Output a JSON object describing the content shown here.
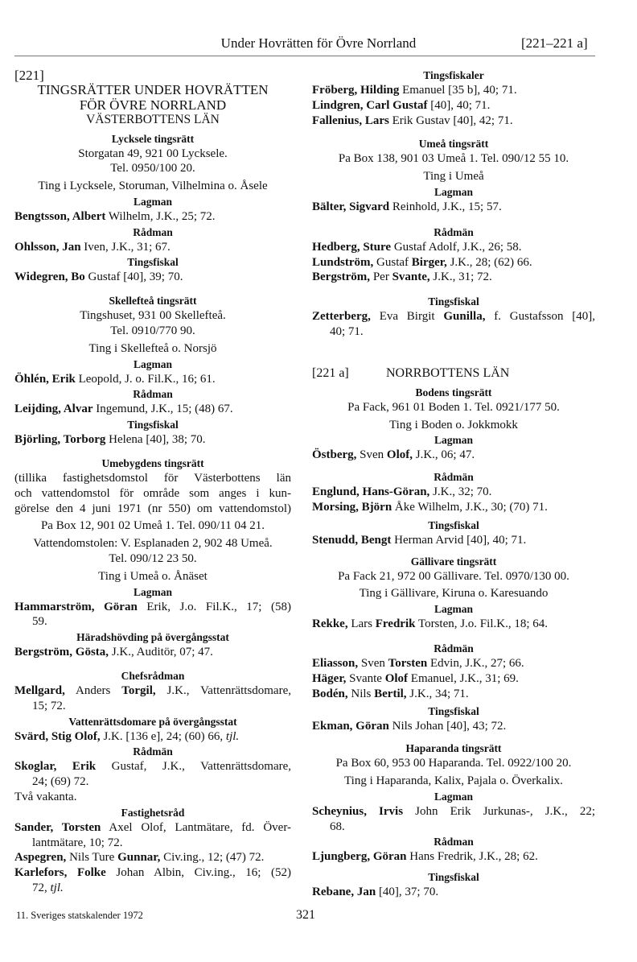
{
  "header": {
    "title": "Under Hovrätten för Övre Norrland",
    "ref": "[221–221 a]"
  },
  "footer": {
    "source": "11. Sveriges statskalender 1972",
    "page": "321"
  },
  "columns": {
    "left": [
      {
        "type": "label",
        "text": "[221]"
      },
      {
        "type": "title",
        "text": "TINGSRÄTTER UNDER HOVRÄTTEN"
      },
      {
        "type": "title",
        "text": "FÖR ÖVRE NORRLAND"
      },
      {
        "type": "county",
        "text": "VÄSTERBOTTENS LÄN"
      },
      {
        "type": "court",
        "text": "Lycksele tingsrätt"
      },
      {
        "type": "center",
        "text": "Storgatan 49, 921 00 Lycksele."
      },
      {
        "type": "center",
        "text": "Tel. 0950/100 20."
      },
      {
        "type": "ting",
        "text": "Ting i Lycksele, Storuman, Vilhelmina o. Åsele"
      },
      {
        "type": "role",
        "text": "Lagman"
      },
      {
        "type": "entry",
        "lines": [
          [
            {
              "b": "Bengtsson, Albert"
            },
            {
              "t": " Wilhelm, J.K., 25; 72."
            }
          ]
        ]
      },
      {
        "type": "role",
        "text": "Rådman"
      },
      {
        "type": "entry",
        "lines": [
          [
            {
              "b": "Ohlsson, Jan"
            },
            {
              "t": " Iven, J.K., 31; 67."
            }
          ]
        ]
      },
      {
        "type": "role",
        "text": "Tingsfiskal"
      },
      {
        "type": "entry",
        "lines": [
          [
            {
              "b": "Widegren, Bo"
            },
            {
              "t": " Gustaf [40], 39; 70."
            }
          ]
        ]
      },
      {
        "type": "court",
        "text": "Skellefteå tingsrätt"
      },
      {
        "type": "center",
        "text": "Tingshuset, 931 00 Skellefteå."
      },
      {
        "type": "center",
        "text": "Tel. 0910/770 90."
      },
      {
        "type": "ting",
        "text": "Ting i Skellefteå o. Norsjö"
      },
      {
        "type": "role",
        "text": "Lagman"
      },
      {
        "type": "entry",
        "lines": [
          [
            {
              "b": "Öhlén, Erik"
            },
            {
              "t": " Leopold, J. o. Fil.K., 16; 61."
            }
          ]
        ]
      },
      {
        "type": "role",
        "text": "Rådman"
      },
      {
        "type": "entry",
        "lines": [
          [
            {
              "b": "Leijding, Alvar"
            },
            {
              "t": " Ingemund, J.K., 15; (48) 67."
            }
          ]
        ]
      },
      {
        "type": "role",
        "text": "Tingsfiskal"
      },
      {
        "type": "entry",
        "lines": [
          [
            {
              "b": "Björling, Torborg"
            },
            {
              "t": " Helena [40], 38; 70."
            }
          ]
        ]
      },
      {
        "type": "court",
        "text": "Umebygdens tingsrätt"
      },
      {
        "type": "para",
        "lines": [
          "(tillika fastighetsdomstol för Västerbottens län",
          "och vattendomstol för område som anges i kun-",
          "görelse den 4 juni 1971 (nr 550) om vattendomstol)"
        ]
      },
      {
        "type": "ting",
        "text": "Pa Box 12, 901 02 Umeå 1. Tel. 090/11 04 21."
      },
      {
        "type": "ting",
        "text": "Vattendomstolen: V. Esplanaden 2, 902 48 Umeå."
      },
      {
        "type": "center",
        "text": "Tel. 090/12 23 50."
      },
      {
        "type": "ting",
        "text": "Ting i Umeå o. Ånäset"
      },
      {
        "type": "role",
        "text": "Lagman"
      },
      {
        "type": "entry",
        "lines": [
          [
            {
              "b": "Hammarström, Göran"
            },
            {
              "t": " Erik, J.o. Fil.K., 17; (58)"
            }
          ],
          [
            {
              "t": "59."
            }
          ]
        ]
      },
      {
        "type": "role",
        "text": "Häradshövding på övergångsstat"
      },
      {
        "type": "entry",
        "lines": [
          [
            {
              "b": "Bergström, Gösta,"
            },
            {
              "t": " J.K., Auditör, 07; 47."
            }
          ]
        ]
      },
      {
        "type": "role",
        "text": "Chefsrådman"
      },
      {
        "type": "entry",
        "lines": [
          [
            {
              "b": "Mellgard,"
            },
            {
              "t": " Anders "
            },
            {
              "b": "Torgil,"
            },
            {
              "t": " J.K., Vattenrättsdomare,"
            }
          ],
          [
            {
              "t": "15; 72."
            }
          ]
        ]
      },
      {
        "type": "role",
        "text": "Vattenrättsdomare på övergångsstat"
      },
      {
        "type": "entry",
        "lines": [
          [
            {
              "b": "Svärd, Stig Olof,"
            },
            {
              "t": " J.K. [136 e], 24; (60) 66, "
            },
            {
              "i": "tjl."
            }
          ]
        ]
      },
      {
        "type": "role",
        "text": "Rådmän"
      },
      {
        "type": "entry",
        "lines": [
          [
            {
              "b": "Skoglar, Erik"
            },
            {
              "t": " Gustaf, J.K., Vattenrättsdomare,"
            }
          ],
          [
            {
              "t": "24; (69) 72."
            }
          ]
        ]
      },
      {
        "type": "entry",
        "lines": [
          [
            {
              "t": "Två vakanta."
            }
          ]
        ]
      },
      {
        "type": "role",
        "text": "Fastighetsråd"
      },
      {
        "type": "entry",
        "lines": [
          [
            {
              "b": "Sander, Torsten"
            },
            {
              "t": " Axel Olof, Lantmätare, fd. Över-"
            }
          ],
          [
            {
              "t": "lantmätare, 10; 72."
            }
          ]
        ]
      },
      {
        "type": "entry",
        "lines": [
          [
            {
              "b": "Aspegren,"
            },
            {
              "t": " Nils Ture "
            },
            {
              "b": "Gunnar,"
            },
            {
              "t": " Civ.ing., 12; (47) 72."
            }
          ]
        ]
      },
      {
        "type": "entry",
        "lines": [
          [
            {
              "b": "Karlefors, Folke"
            },
            {
              "t": " Johan Albin, Civ.ing., 16; (52)"
            }
          ],
          [
            {
              "t": "72, "
            },
            {
              "i": "tjl."
            }
          ]
        ]
      }
    ],
    "right": [
      {
        "type": "role",
        "text": "Tingsfiskaler"
      },
      {
        "type": "entry",
        "lines": [
          [
            {
              "b": "Fröberg, Hilding"
            },
            {
              "t": " Emanuel [35 b], 40; 71."
            }
          ]
        ]
      },
      {
        "type": "entry",
        "lines": [
          [
            {
              "b": "Lindgren, Carl Gustaf"
            },
            {
              "t": " [40], 40; 71."
            }
          ]
        ]
      },
      {
        "type": "entry",
        "lines": [
          [
            {
              "b": "Fallenius, Lars"
            },
            {
              "t": " Erik Gustav [40], 42; 71."
            }
          ]
        ]
      },
      {
        "type": "court",
        "text": "Umeå tingsrätt"
      },
      {
        "type": "center",
        "text": "Pa Box 138, 901 03 Umeå 1. Tel. 090/12 55 10."
      },
      {
        "type": "ting",
        "text": "Ting i Umeå"
      },
      {
        "type": "role",
        "text": "Lagman"
      },
      {
        "type": "entry",
        "lines": [
          [
            {
              "b": "Bälter, Sigvard"
            },
            {
              "t": " Reinhold, J.K., 15; 57."
            }
          ]
        ]
      },
      {
        "type": "role",
        "text": "Rådmän"
      },
      {
        "type": "entry",
        "lines": [
          [
            {
              "b": "Hedberg, Sture"
            },
            {
              "t": " Gustaf Adolf, J.K., 26; 58."
            }
          ]
        ]
      },
      {
        "type": "entry",
        "lines": [
          [
            {
              "b": "Lundström,"
            },
            {
              "t": " Gustaf "
            },
            {
              "b": "Birger,"
            },
            {
              "t": " J.K., 28; (62) 66."
            }
          ]
        ]
      },
      {
        "type": "entry",
        "lines": [
          [
            {
              "b": "Bergström,"
            },
            {
              "t": " Per "
            },
            {
              "b": "Svante,"
            },
            {
              "t": " J.K., 31; 72."
            }
          ]
        ]
      },
      {
        "type": "role",
        "text": "Tingsfiskal"
      },
      {
        "type": "entry",
        "lines": [
          [
            {
              "b": "Zetterberg,"
            },
            {
              "t": " Eva Birgit "
            },
            {
              "b": "Gunilla,"
            },
            {
              "t": " f. Gustafsson [40],"
            }
          ],
          [
            {
              "t": "40; 71."
            }
          ]
        ]
      },
      {
        "type": "section",
        "label": "[221 a]",
        "text": "NORRBOTTENS LÄN"
      },
      {
        "type": "court",
        "text": "Bodens tingsrätt"
      },
      {
        "type": "center",
        "text": "Pa Fack, 961 01 Boden 1. Tel. 0921/177 50."
      },
      {
        "type": "ting",
        "text": "Ting i Boden o. Jokkmokk"
      },
      {
        "type": "role",
        "text": "Lagman"
      },
      {
        "type": "entry",
        "lines": [
          [
            {
              "b": "Östberg,"
            },
            {
              "t": " Sven "
            },
            {
              "b": "Olof,"
            },
            {
              "t": " J.K., 06; 47."
            }
          ]
        ]
      },
      {
        "type": "role",
        "text": "Rådmän"
      },
      {
        "type": "entry",
        "lines": [
          [
            {
              "b": "Englund, Hans-Göran,"
            },
            {
              "t": " J.K., 32; 70."
            }
          ]
        ]
      },
      {
        "type": "entry",
        "lines": [
          [
            {
              "b": "Morsing, Björn"
            },
            {
              "t": " Åke Wilhelm, J.K., 30; (70) 71."
            }
          ]
        ]
      },
      {
        "type": "role",
        "text": "Tingsfiskal"
      },
      {
        "type": "entry",
        "lines": [
          [
            {
              "b": "Stenudd, Bengt"
            },
            {
              "t": " Herman Arvid [40], 40; 71."
            }
          ]
        ]
      },
      {
        "type": "court",
        "text": "Gällivare tingsrätt"
      },
      {
        "type": "center",
        "text": "Pa Fack 21, 972 00 Gällivare. Tel. 0970/130 00."
      },
      {
        "type": "ting",
        "text": "Ting i Gällivare, Kiruna o. Karesuando"
      },
      {
        "type": "role",
        "text": "Lagman"
      },
      {
        "type": "entry",
        "lines": [
          [
            {
              "b": "Rekke,"
            },
            {
              "t": " Lars "
            },
            {
              "b": "Fredrik"
            },
            {
              "t": " Torsten, J.o. Fil.K., 18; 64."
            }
          ]
        ]
      },
      {
        "type": "role",
        "text": "Rådmän"
      },
      {
        "type": "entry",
        "lines": [
          [
            {
              "b": "Eliasson,"
            },
            {
              "t": " Sven "
            },
            {
              "b": "Torsten"
            },
            {
              "t": " Edvin, J.K., 27; 66."
            }
          ]
        ]
      },
      {
        "type": "entry",
        "lines": [
          [
            {
              "b": "Häger,"
            },
            {
              "t": " Svante "
            },
            {
              "b": "Olof"
            },
            {
              "t": " Emanuel, J.K., 31; 69."
            }
          ]
        ]
      },
      {
        "type": "entry",
        "lines": [
          [
            {
              "b": "Bodén,"
            },
            {
              "t": " Nils "
            },
            {
              "b": "Bertil,"
            },
            {
              "t": " J.K., 34; 71."
            }
          ]
        ]
      },
      {
        "type": "role",
        "text": "Tingsfiskal"
      },
      {
        "type": "entry",
        "lines": [
          [
            {
              "b": "Ekman, Göran"
            },
            {
              "t": " Nils Johan [40], 43; 72."
            }
          ]
        ]
      },
      {
        "type": "court",
        "text": "Haparanda tingsrätt"
      },
      {
        "type": "center",
        "text": "Pa Box 60, 953 00 Haparanda. Tel. 0922/100 20."
      },
      {
        "type": "ting",
        "text": "Ting i Haparanda, Kalix, Pajala o. Överkalix."
      },
      {
        "type": "role",
        "text": "Lagman"
      },
      {
        "type": "entry",
        "lines": [
          [
            {
              "b": "Scheynius, Irvis"
            },
            {
              "t": " John Erik Jurkunas-, J.K., 22;"
            }
          ],
          [
            {
              "t": "68."
            }
          ]
        ]
      },
      {
        "type": "role",
        "text": "Rådman"
      },
      {
        "type": "entry",
        "lines": [
          [
            {
              "b": "Ljungberg, Göran"
            },
            {
              "t": " Hans Fredrik, J.K., 28; 62."
            }
          ]
        ]
      },
      {
        "type": "role",
        "text": "Tingsfiskal"
      },
      {
        "type": "entry",
        "lines": [
          [
            {
              "b": "Rebane, Jan"
            },
            {
              "t": " [40], 37; 70."
            }
          ]
        ]
      }
    ]
  }
}
